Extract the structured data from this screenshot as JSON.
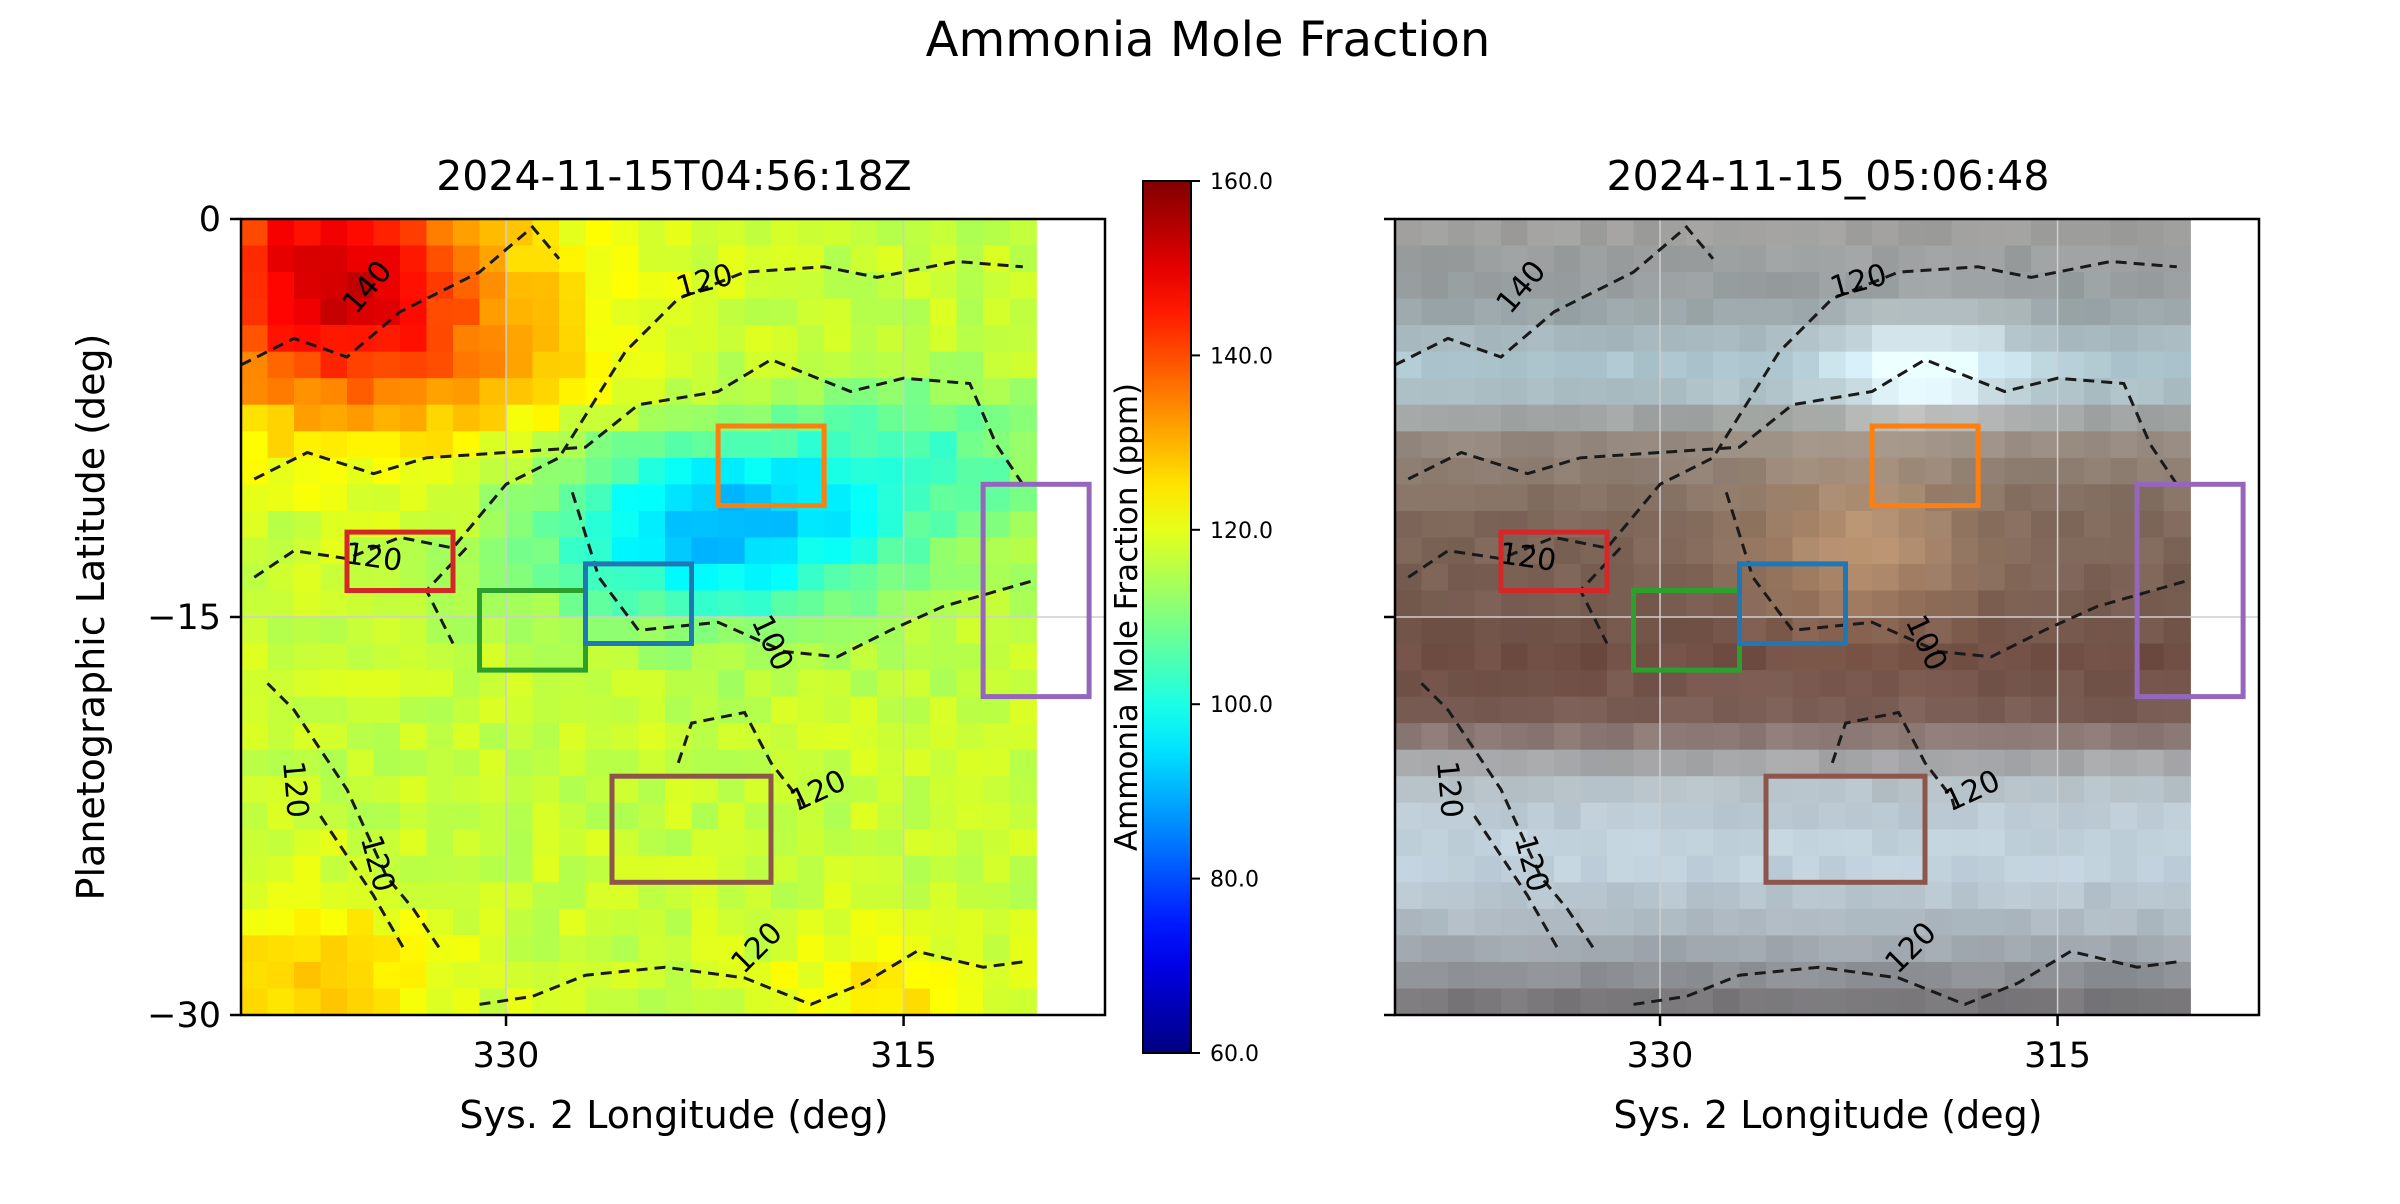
{
  "figure": {
    "title": "Ammonia Mole Fraction"
  },
  "chart_data": [
    {
      "type": "heatmap",
      "title": "2024-11-15T04:56:18Z",
      "xlabel": "Sys. 2 Longitude (deg)",
      "ylabel": "Planetographic Latitude (deg)",
      "xlim": [
        340,
        307.4
      ],
      "ylim": [
        -30,
        0
      ],
      "x_ticks": [
        330,
        315
      ],
      "y_ticks": [
        0,
        -15,
        -30
      ],
      "x_tick_labels": [
        "330",
        "315"
      ],
      "y_tick_labels": [
        "0",
        "−15",
        "−30"
      ],
      "grid": true,
      "data_extent_lon": [
        340,
        310
      ],
      "colormap": "jet",
      "value_range": [
        60,
        160
      ],
      "colorbar": {
        "label": "Ammonia Mole Fraction (ppm)",
        "ticks": [
          60,
          80,
          100,
          120,
          140,
          160
        ],
        "tick_labels": [
          "60.0",
          "80.0",
          "100.0",
          "120.0",
          "140.0",
          "160.0"
        ]
      },
      "contour_labels": [
        {
          "text": "140",
          "lon": 335.2,
          "lat": -2.6,
          "angle": -50
        },
        {
          "text": "120",
          "lon": 322.5,
          "lat": -2.4,
          "angle": -15
        },
        {
          "text": "120",
          "lon": 335,
          "lat": -12.8,
          "angle": 8
        },
        {
          "text": "100",
          "lon": 320,
          "lat": -16,
          "angle": 65
        },
        {
          "text": "120",
          "lon": 338,
          "lat": -21.5,
          "angle": 85
        },
        {
          "text": "120",
          "lon": 334.9,
          "lat": -24.3,
          "angle": 75
        },
        {
          "text": "120",
          "lon": 318.2,
          "lat": -21.6,
          "angle": -25
        },
        {
          "text": "120",
          "lon": 320.5,
          "lat": -27.5,
          "angle": -45
        }
      ]
    },
    {
      "type": "heatmap",
      "title": "2024-11-15_05:06:48",
      "xlabel": "Sys. 2 Longitude (deg)",
      "ylabel": "",
      "xlim": [
        340,
        307.4
      ],
      "ylim": [
        -30,
        0
      ],
      "x_ticks": [
        330,
        315
      ],
      "y_ticks": [
        0,
        -15,
        -30
      ],
      "x_tick_labels": [
        "330",
        "315"
      ],
      "grid": true,
      "data_extent_lon": [
        340,
        310
      ],
      "contour_labels": [
        {
          "text": "140",
          "lon": 335.2,
          "lat": -2.6,
          "angle": -50
        },
        {
          "text": "120",
          "lon": 322.5,
          "lat": -2.4,
          "angle": -15
        },
        {
          "text": "120",
          "lon": 335,
          "lat": -12.8,
          "angle": 8
        },
        {
          "text": "100",
          "lon": 320,
          "lat": -16,
          "angle": 65
        },
        {
          "text": "120",
          "lon": 338,
          "lat": -21.5,
          "angle": 85
        },
        {
          "text": "120",
          "lon": 334.9,
          "lat": -24.3,
          "angle": 75
        },
        {
          "text": "120",
          "lon": 318.2,
          "lat": -21.6,
          "angle": -25
        },
        {
          "text": "120",
          "lon": 320.5,
          "lat": -27.5,
          "angle": -45
        }
      ]
    }
  ],
  "regions": [
    {
      "name": "red",
      "color": "#d62728",
      "lon": [
        336,
        332
      ],
      "lat": [
        -11.8,
        -14
      ]
    },
    {
      "name": "green",
      "color": "#2ca02c",
      "lon": [
        331,
        327
      ],
      "lat": [
        -14,
        -17
      ]
    },
    {
      "name": "blue",
      "color": "#1f77b4",
      "lon": [
        327,
        323
      ],
      "lat": [
        -13,
        -16
      ]
    },
    {
      "name": "orange",
      "color": "#ff7f0e",
      "lon": [
        322,
        318
      ],
      "lat": [
        -7.8,
        -10.8
      ]
    },
    {
      "name": "purple",
      "color": "#9467bd",
      "lon": [
        312,
        308
      ],
      "lat": [
        -10,
        -18
      ]
    },
    {
      "name": "brown",
      "color": "#8c564b",
      "lon": [
        326,
        320
      ],
      "lat": [
        -21,
        -25
      ]
    }
  ]
}
